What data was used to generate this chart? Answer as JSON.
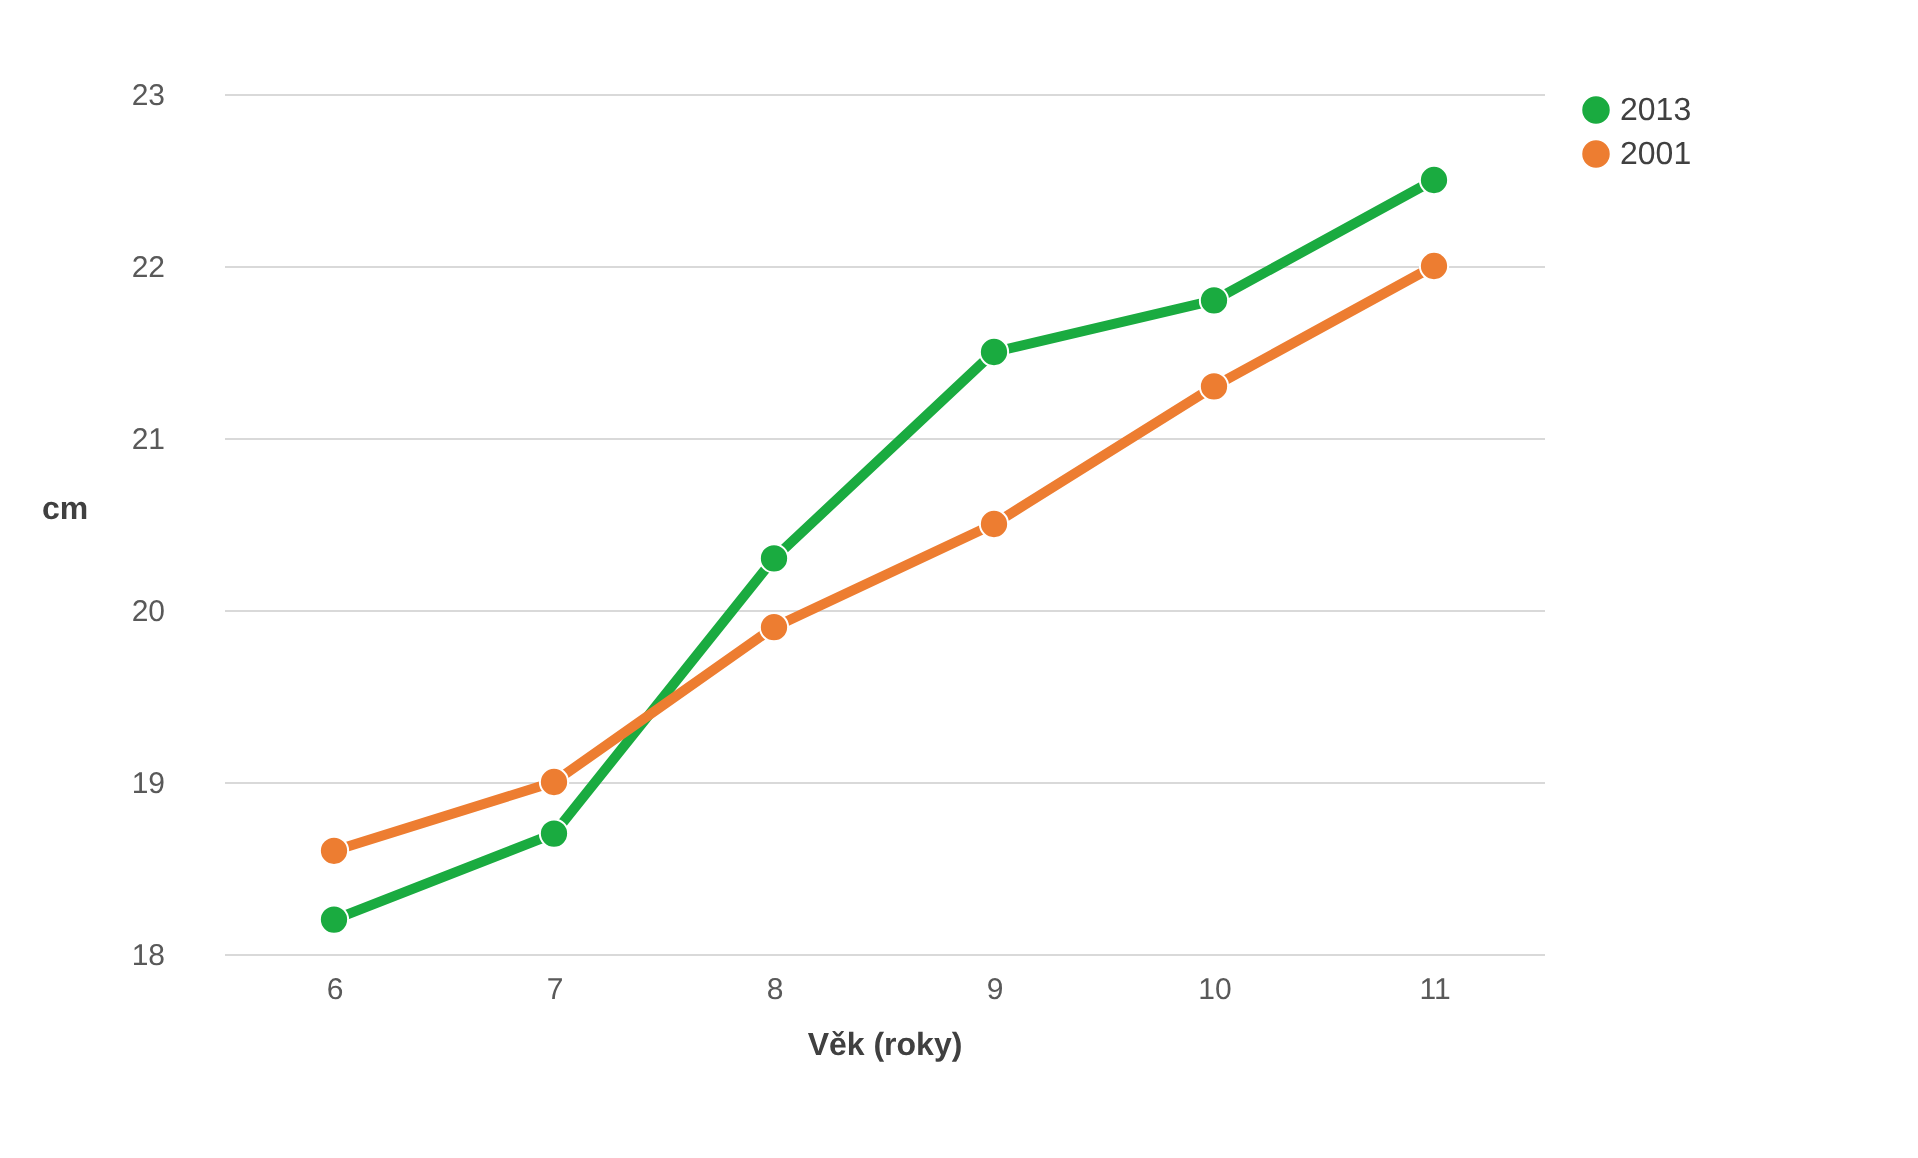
{
  "chart_data": {
    "type": "line",
    "xlabel": "Věk (roky)",
    "ylabel": "cm",
    "categories": [
      "6",
      "7",
      "8",
      "9",
      "10",
      "11"
    ],
    "ylim": [
      18,
      23
    ],
    "yticks": [
      18,
      19,
      20,
      21,
      22,
      23
    ],
    "grid": "y",
    "legend": "right",
    "marker": "circle",
    "line_style": "solid",
    "series": [
      {
        "name": "2013",
        "color": "#1aab40",
        "values": [
          18.2,
          18.7,
          20.3,
          21.5,
          21.8,
          22.5
        ]
      },
      {
        "name": "2001",
        "color": "#ed7d31",
        "values": [
          18.6,
          19.0,
          19.9,
          20.5,
          21.3,
          22.0
        ]
      }
    ]
  }
}
